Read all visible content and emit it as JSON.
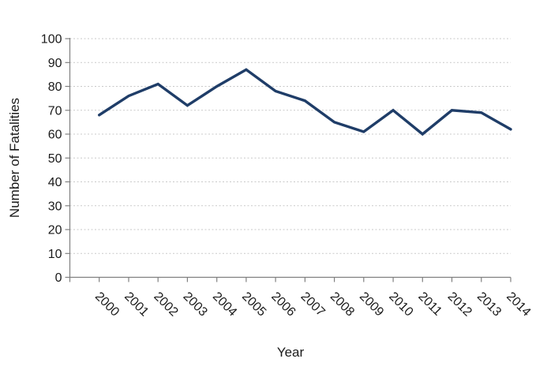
{
  "chart_data": {
    "type": "line",
    "title": "",
    "categories": [
      "2000",
      "2001",
      "2002",
      "2003",
      "2004",
      "2005",
      "2006",
      "2007",
      "2008",
      "2009",
      "2010",
      "2011",
      "2012",
      "2013",
      "2014"
    ],
    "values": [
      68,
      76,
      81,
      72,
      80,
      87,
      78,
      74,
      65,
      61,
      70,
      60,
      70,
      69,
      62
    ],
    "series": [
      {
        "name": "Number of Fatalities",
        "values": [
          68,
          76,
          81,
          72,
          80,
          87,
          78,
          74,
          65,
          61,
          70,
          60,
          70,
          69,
          62
        ]
      }
    ],
    "xlabel": "Year",
    "ylabel": "Number of Fatalities",
    "ylim": [
      0,
      100
    ],
    "ytick_step": 10,
    "ytick_labels": [
      "0",
      "10",
      "20",
      "30",
      "40",
      "50",
      "60",
      "70",
      "80",
      "90",
      "100"
    ],
    "grid": "horizontal-dashed",
    "legend": "none",
    "x_label_rotation_deg": 45,
    "line_color": "#1f3d68",
    "axis_color": "#808080",
    "gridline_color": "#c9c9c9",
    "label_color": "#1a1a1a",
    "background_color": "#ffffff"
  }
}
